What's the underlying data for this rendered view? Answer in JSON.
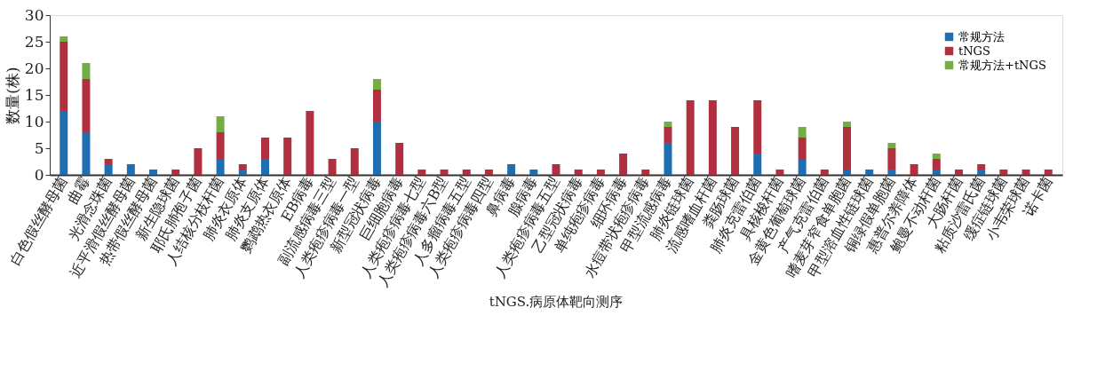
{
  "chart_data": {
    "type": "bar",
    "stacked": true,
    "ylabel": "数量(株)",
    "annotations": [
      "tNGS.病原体靶向测序"
    ],
    "categories": [
      "白色假丝酵母菌",
      "曲霉",
      "光滑念珠菌",
      "近平滑假丝酵母菌",
      "热带假丝酵母菌",
      "新生隐球菌",
      "耶氏肺孢子菌",
      "人结核分枝杆菌",
      "肺炎衣原体",
      "肺炎支原体",
      "鹦鹉热衣原体",
      "EB病毒",
      "副流感病毒三型",
      "人类疱疹病毒一型",
      "新型冠状病毒",
      "巨细胞病毒",
      "人类疱疹病毒七型",
      "人类疱疹病毒六B型",
      "人多瘤病毒五型",
      "人类疱疹病毒四型",
      "鼻病毒",
      "腺病毒",
      "人类疱疹病毒五型",
      "乙型冠状病毒",
      "单纯疱疹病毒",
      "细环病毒",
      "水痘带状疱疹病毒",
      "甲型流感病毒",
      "肺炎链球菌",
      "流感嗜血杆菌",
      "粪肠球菌",
      "肺炎克雷伯菌",
      "具核梭杆菌",
      "金黄色葡萄球菌",
      "产气克雷伯菌",
      "嗜麦芽窄食单胞菌",
      "甲型溶血性链球菌",
      "铜绿假单胞菌",
      "惠普尔养障体",
      "鲍曼不动杆菌",
      "大肠杆菌",
      "粘质沙雷氏菌",
      "缓症链球菌",
      "小韦荣球菌",
      "诺卡菌"
    ],
    "series": [
      {
        "name": "常规方法",
        "color": "#1f6fb0",
        "values": [
          12,
          8,
          2,
          2,
          1,
          0,
          0,
          3,
          1,
          3,
          0,
          0,
          0,
          0,
          10,
          0,
          0,
          0,
          0,
          0,
          2,
          1,
          0,
          0,
          0,
          0,
          0,
          6,
          0,
          0,
          0,
          4,
          0,
          3,
          0,
          1,
          1,
          1,
          0,
          1,
          0,
          1,
          0,
          0,
          0
        ]
      },
      {
        "name": "tNGS",
        "color": "#b0303f",
        "values": [
          13,
          10,
          1,
          0,
          0,
          1,
          5,
          5,
          1,
          4,
          7,
          12,
          3,
          5,
          6,
          6,
          1,
          1,
          1,
          1,
          0,
          0,
          2,
          1,
          1,
          4,
          1,
          3,
          14,
          14,
          9,
          10,
          1,
          4,
          1,
          8,
          0,
          4,
          2,
          2,
          1,
          1,
          1,
          1,
          1
        ]
      },
      {
        "name": "常规方法+tNGS",
        "color": "#76ac44",
        "values": [
          1,
          3,
          0,
          0,
          0,
          0,
          0,
          3,
          0,
          0,
          0,
          0,
          0,
          0,
          2,
          0,
          0,
          0,
          0,
          0,
          0,
          0,
          0,
          0,
          0,
          0,
          0,
          1,
          0,
          0,
          0,
          0,
          0,
          2,
          0,
          1,
          0,
          1,
          0,
          1,
          0,
          0,
          0,
          0,
          0
        ]
      }
    ],
    "ylim": [
      0,
      30
    ],
    "yticks": [
      0,
      5,
      10,
      15,
      20,
      25,
      30
    ],
    "grid": false,
    "legend": "top right"
  }
}
